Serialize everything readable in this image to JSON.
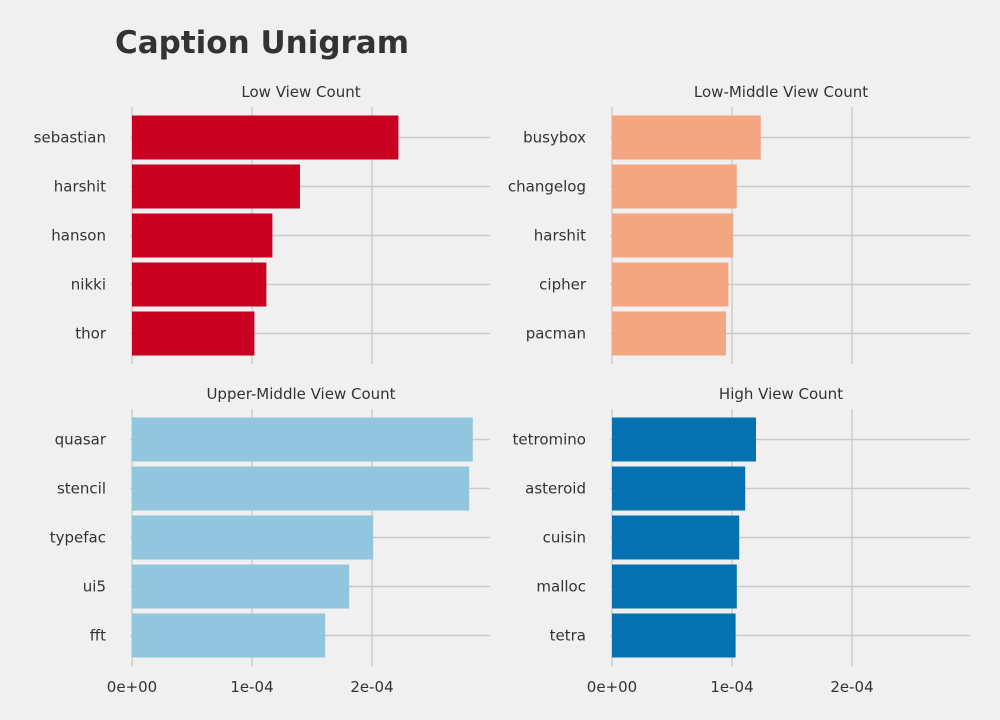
{
  "title": "Caption Unigram",
  "chart_data": {
    "type": "bar",
    "orientation": "horizontal",
    "title": "Caption Unigram",
    "xlabel": "",
    "ylabel": "",
    "grid": true,
    "legend": "none",
    "xlim": [
      0,
      0.0003
    ],
    "x_ticks": [
      0,
      0.0001,
      0.0002
    ],
    "x_tick_labels": [
      "0e+00",
      "1e-04",
      "2e-04"
    ],
    "panels": [
      {
        "name": "Low View Count",
        "color": "#ca0020",
        "categories": [
          "sebastian",
          "harshit",
          "hanson",
          "nikki",
          "thor"
        ],
        "values": [
          0.000222,
          0.00014,
          0.000117,
          0.000112,
          0.000102
        ]
      },
      {
        "name": "Low-Middle View Count",
        "color": "#f4a582",
        "categories": [
          "busybox",
          "changelog",
          "harshit",
          "cipher",
          "pacman"
        ],
        "values": [
          0.000124,
          0.000104,
          0.000101,
          9.7e-05,
          9.5e-05
        ]
      },
      {
        "name": "Upper-Middle View Count",
        "color": "#92c5de",
        "categories": [
          "quasar",
          "stencil",
          "typefac",
          "ui5",
          "fft"
        ],
        "values": [
          0.000284,
          0.000281,
          0.000201,
          0.000181,
          0.000161
        ]
      },
      {
        "name": "High View Count",
        "color": "#0571b0",
        "categories": [
          "tetromino",
          "asteroid",
          "cuisin",
          "malloc",
          "tetra"
        ],
        "values": [
          0.00012,
          0.000111,
          0.000106,
          0.000104,
          0.000103
        ]
      }
    ]
  }
}
